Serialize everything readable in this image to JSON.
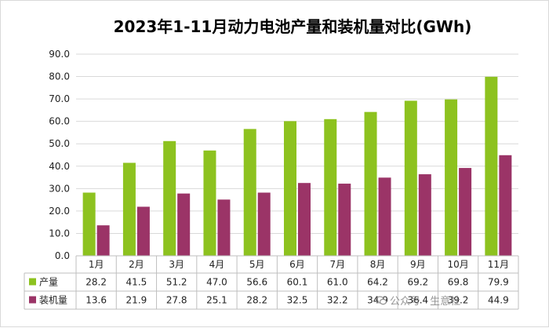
{
  "chart_data": {
    "type": "bar",
    "title": "2023年1-11月动力电池产量和装机量对比(GWh)",
    "categories": [
      "1月",
      "2月",
      "3月",
      "4月",
      "5月",
      "6月",
      "7月",
      "8月",
      "9月",
      "10月",
      "11月"
    ],
    "series": [
      {
        "name": "产量",
        "values": [
          28.2,
          41.5,
          51.2,
          47.0,
          56.6,
          60.1,
          61.0,
          64.2,
          69.2,
          69.8,
          79.9
        ],
        "labels": [
          "28.2",
          "41.5",
          "51.2",
          "47.0",
          "56.6",
          "60.1",
          "61.0",
          "64.2",
          "69.2",
          "69.8",
          "79.9"
        ],
        "color": "#8dc21f"
      },
      {
        "name": "装机量",
        "values": [
          13.6,
          21.9,
          27.8,
          25.1,
          28.2,
          32.5,
          32.2,
          34.9,
          36.4,
          39.2,
          44.9
        ],
        "labels": [
          "13.6",
          "21.9",
          "27.8",
          "25.1",
          "28.2",
          "32.5",
          "32.2",
          "34.9",
          "36.4",
          "39.2",
          "44.9"
        ],
        "color": "#9b3467"
      }
    ],
    "ylim": [
      0,
      90
    ],
    "yticks": [
      "0.0",
      "10.0",
      "20.0",
      "30.0",
      "40.0",
      "50.0",
      "60.0",
      "70.0",
      "80.0",
      "90.0"
    ],
    "grid": true,
    "legend": "data-table"
  },
  "watermark": {
    "icon": "wechat-icon",
    "account_label": "公众号",
    "separator": "·",
    "account_name": "生意社"
  }
}
